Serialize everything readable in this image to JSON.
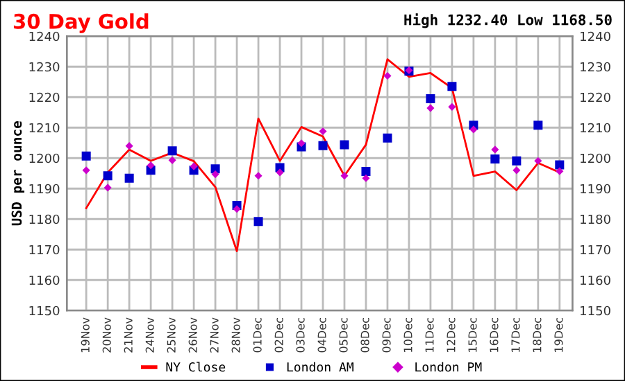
{
  "chart_data": {
    "type": "line",
    "title": "30 Day Gold",
    "annotations": [
      "High 1232.40 Low 1168.50"
    ],
    "ylabel": "USD per ounce",
    "categories": [
      "19Nov",
      "20Nov",
      "21Nov",
      "24Nov",
      "25Nov",
      "26Nov",
      "27Nov",
      "28Nov",
      "01Dec",
      "02Dec",
      "03Dec",
      "04Dec",
      "05Dec",
      "08Dec",
      "09Dec",
      "10Dec",
      "11Dec",
      "12Dec",
      "15Dec",
      "16Dec",
      "17Dec",
      "18Dec",
      "19Dec"
    ],
    "series": [
      {
        "name": "NY Close",
        "marker": "none",
        "color": "#ff0000",
        "values": [
          1183.6,
          1195.3,
          1202.8,
          1199.1,
          1201.8,
          1199,
          1190.5,
          1169.5,
          1213,
          1199.1,
          1210.2,
          1207.1,
          1194.2,
          1204.4,
          1232.4,
          1226.7,
          1227.9,
          1223,
          1194.2,
          1195.6,
          1189.5,
          1198.4,
          1195.3
        ]
      },
      {
        "name": "London AM",
        "type": "scatter",
        "marker": "square",
        "color": "#0000cc",
        "values": [
          1200.7,
          1194.2,
          1193.4,
          1196,
          1202.4,
          1196,
          1196.5,
          1184.5,
          1179.2,
          1196.9,
          1203.7,
          1204.1,
          1204.4,
          1195.6,
          1206.6,
          1228.5,
          1219.5,
          1223.5,
          1210.8,
          1199.7,
          1199.1,
          1210.8,
          1197.8
        ]
      },
      {
        "name": "London PM",
        "type": "scatter",
        "marker": "diamond",
        "color": "#cc00cc",
        "values": [
          1196,
          1190.3,
          1204,
          1197.6,
          1199.3,
          1197.3,
          1194.7,
          1183.3,
          1194.2,
          1195.3,
          1204.9,
          1208.8,
          1194.2,
          1193.4,
          1227,
          1228.8,
          1216.4,
          1216.8,
          1209.4,
          1202.8,
          1196,
          1199.1,
          1195.7
        ]
      }
    ],
    "ylim": [
      1150,
      1240
    ],
    "yticks": [
      1150,
      1160,
      1170,
      1180,
      1190,
      1200,
      1210,
      1220,
      1230,
      1240
    ],
    "y2lim": [
      1150,
      1240
    ],
    "y2ticks": [
      1150,
      1160,
      1170,
      1180,
      1190,
      1200,
      1210,
      1220,
      1230,
      1240
    ],
    "grid": true,
    "legend": "bottom"
  }
}
